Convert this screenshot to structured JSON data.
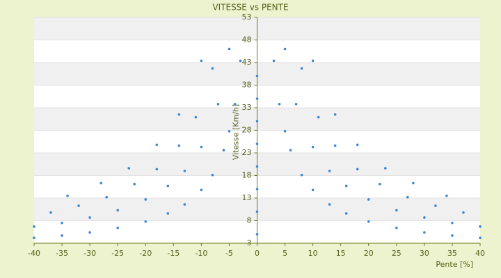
{
  "chart_data": {
    "type": "scatter",
    "title": "VITESSE vs PENTE",
    "xlabel": "Pente [%]",
    "ylabel": "Vitesse [Km/h]",
    "color": "#3a87d4",
    "grid": true,
    "bands": true,
    "xlim": [
      -40,
      40
    ],
    "ylim": [
      3,
      53
    ],
    "xticks": [
      -40,
      -35,
      -30,
      -25,
      -20,
      -15,
      -10,
      -5,
      0,
      5,
      10,
      15,
      20,
      25,
      30,
      35,
      40
    ],
    "yticks": [
      3,
      8,
      13,
      18,
      23,
      28,
      33,
      38,
      43,
      48,
      53
    ],
    "x": [
      3,
      4,
      5,
      6,
      8,
      10,
      13,
      16,
      20,
      25,
      30,
      35,
      40,
      -3,
      -4,
      -5,
      -6,
      -8,
      -10,
      -13,
      -16,
      -20,
      -25,
      -30,
      -35,
      -40,
      5,
      7,
      10,
      13,
      16,
      20,
      25,
      30,
      35,
      40,
      -5,
      -7,
      -10,
      -13,
      -16,
      -20,
      -25,
      -30,
      -35,
      -40,
      8,
      11,
      14,
      18,
      22,
      27,
      32,
      37,
      -8,
      -11,
      -14,
      -18,
      -22,
      -27,
      -32,
      -37,
      10,
      14,
      18,
      23,
      28,
      34,
      -10,
      -14,
      -18,
      -23,
      -28,
      -34,
      0,
      0,
      0,
      0,
      0,
      0,
      0,
      0
    ],
    "y": [
      43.4,
      33.8,
      27.8,
      23.6,
      18.1,
      14.8,
      11.6,
      9.6,
      7.8,
      6.4,
      5.4,
      4.7,
      4.2,
      43.4,
      33.8,
      27.8,
      23.6,
      18.1,
      14.8,
      11.6,
      9.6,
      7.8,
      6.4,
      5.4,
      4.7,
      4.2,
      46.0,
      33.8,
      24.3,
      19.0,
      15.7,
      12.7,
      10.3,
      8.7,
      7.5,
      6.7,
      46.0,
      33.8,
      24.3,
      19.0,
      15.7,
      12.7,
      10.3,
      8.7,
      7.5,
      6.7,
      41.7,
      30.9,
      24.6,
      19.4,
      16.1,
      13.2,
      11.3,
      9.8,
      41.7,
      30.9,
      24.6,
      19.4,
      16.1,
      13.2,
      11.3,
      9.8,
      43.4,
      31.5,
      24.8,
      19.6,
      16.3,
      13.5,
      43.4,
      31.5,
      24.8,
      19.6,
      16.3,
      13.5,
      5,
      10,
      15,
      20,
      25,
      30,
      35,
      40
    ]
  }
}
